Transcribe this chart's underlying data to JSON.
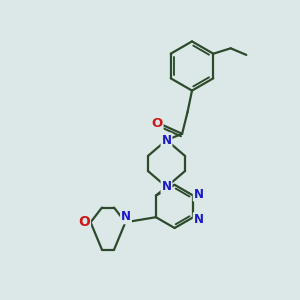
{
  "bg_color": "#dce8e8",
  "bond_color": "#2d4a2d",
  "N_color": "#1a1acc",
  "O_color": "#cc1a1a",
  "font_size": 8.5,
  "bond_width": 1.6,
  "figsize": [
    3.0,
    3.0
  ],
  "dpi": 100,
  "xlim": [
    0,
    10
  ],
  "ylim": [
    0,
    10
  ]
}
